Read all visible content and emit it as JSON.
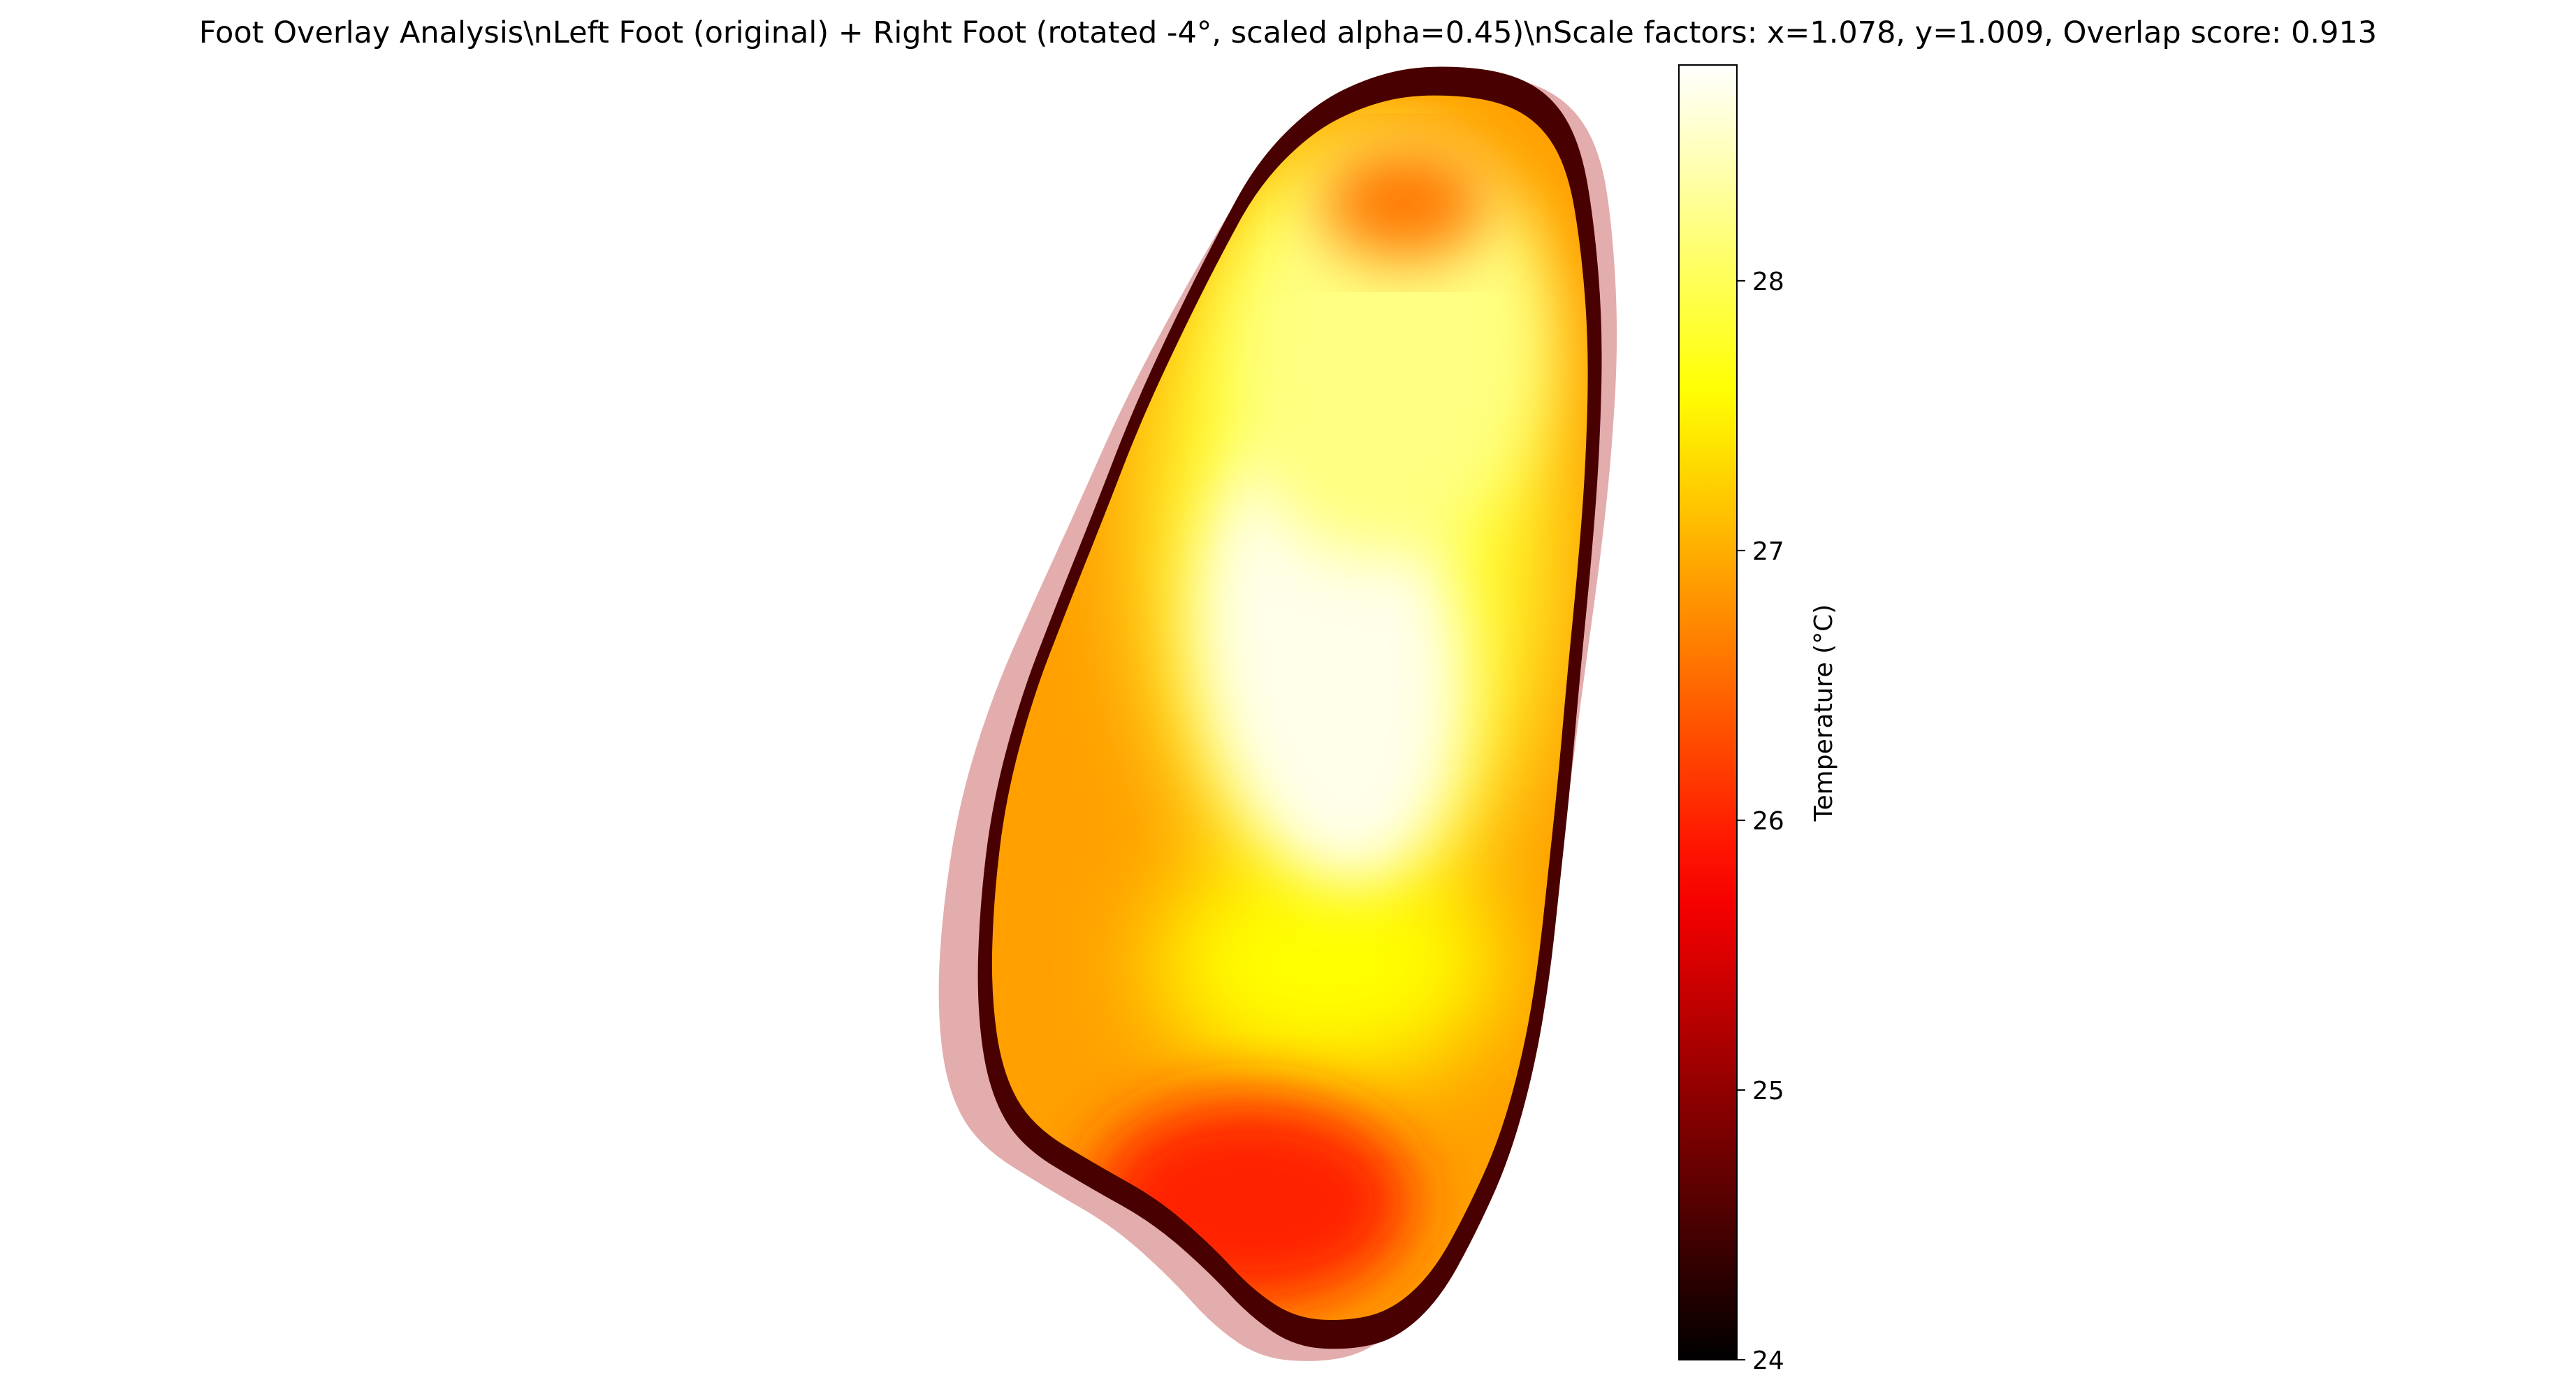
{
  "chart_data": {
    "type": "heatmap",
    "title": "Foot Overlay Analysis\\nLeft Foot (original) + Right Foot (rotated -4°, scaled alpha=0.45)\\nScale factors: x=1.078, y=1.009, Overlap score: 0.913",
    "colormap": "hot",
    "axes_visible": false,
    "grid": false,
    "colorbar": {
      "label": "Temperature (°C)",
      "vmin": 24,
      "vmax": 28.8,
      "ticks": [
        24,
        25,
        26,
        27,
        28
      ],
      "tick_labels": [
        "24",
        "25",
        "26",
        "27",
        "28"
      ]
    },
    "layers": [
      {
        "role": "Left Foot (original)",
        "temperature_range": [
          24,
          28.8
        ],
        "hot_spots": [
          {
            "region": "mid-foot medial",
            "value": 28.7
          },
          {
            "region": "forefoot",
            "value": 28.2
          },
          {
            "region": "heel",
            "value": 26.0
          },
          {
            "region": "toe area",
            "value": 26.6
          }
        ],
        "edge_value": 24.5
      },
      {
        "role": "Right Foot (rotated -4°, scaled alpha=0.45)",
        "rotation_deg": -4,
        "alpha": 0.45,
        "scale_x": 1.078,
        "scale_y": 1.009
      }
    ],
    "overlap_score": 0.913
  }
}
